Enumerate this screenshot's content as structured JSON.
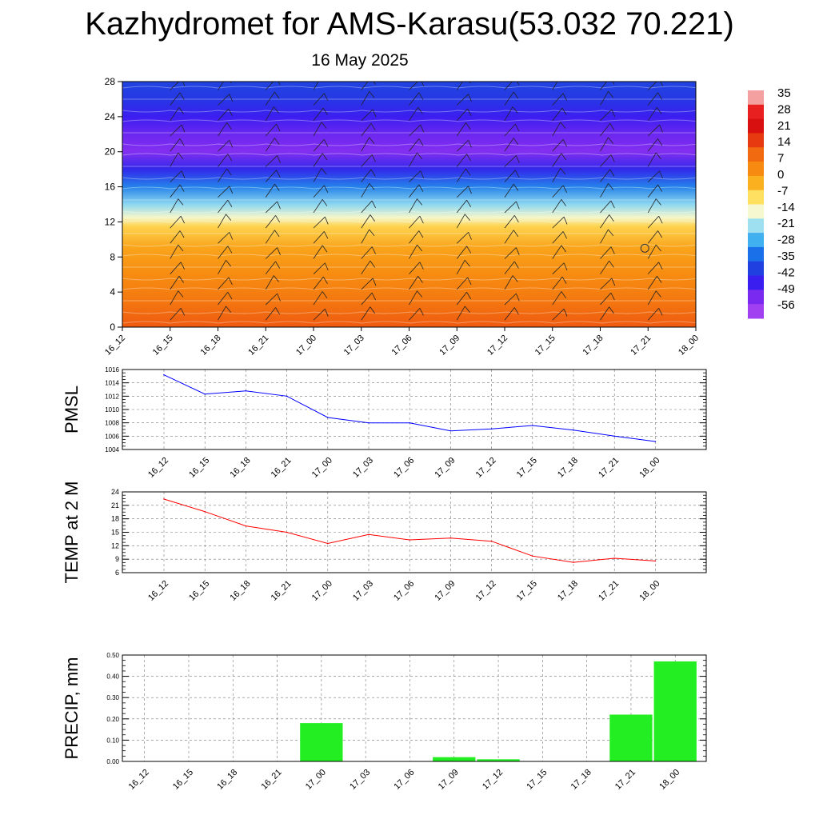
{
  "title": "Kazhydromet for AMS-Karasu(53.032 70.221)",
  "subtitle": "16 May 2025",
  "chart_data": [
    {
      "type": "heatmap",
      "name": "time-height temperature cross-section with wind barbs",
      "x_ticks": [
        "16_12",
        "16_15",
        "16_18",
        "16_21",
        "17_00",
        "17_03",
        "17_06",
        "17_09",
        "17_12",
        "17_15",
        "17_18",
        "17_21",
        "18_00"
      ],
      "y_ticks": [
        "0",
        "4",
        "8",
        "12",
        "16",
        "20",
        "24",
        "28"
      ],
      "ylim": [
        0,
        28
      ],
      "colorbar": {
        "labels": [
          "35",
          "28",
          "21",
          "14",
          "7",
          "0",
          "-7",
          "-14",
          "-21",
          "-28",
          "-35",
          "-42",
          "-49",
          "-56"
        ],
        "colors": [
          "#f4a0a0",
          "#e82020",
          "#d81010",
          "#e83a10",
          "#f26a10",
          "#f78a10",
          "#fbb020",
          "#ffe060",
          "#f6f8d0",
          "#9ee0f0",
          "#40b0f0",
          "#1a70e8",
          "#2040e0",
          "#3a1ef0",
          "#7a2af0",
          "#a040f0"
        ]
      },
      "profile_temp_by_height": [
        [
          0,
          14
        ],
        [
          3,
          9
        ],
        [
          6,
          5
        ],
        [
          9,
          1
        ],
        [
          11.5,
          -6
        ],
        [
          12.5,
          -14
        ],
        [
          14,
          -22
        ],
        [
          16,
          -32
        ],
        [
          18,
          -45
        ],
        [
          20,
          -55
        ],
        [
          22,
          -52
        ],
        [
          24,
          -47
        ],
        [
          26,
          -42
        ],
        [
          28,
          -40
        ]
      ]
    },
    {
      "type": "line",
      "ylabel": "PMSL",
      "categories": [
        "16_12",
        "16_15",
        "16_18",
        "16_21",
        "17_00",
        "17_03",
        "17_06",
        "17_09",
        "17_12",
        "17_15",
        "17_18",
        "17_21",
        "18_00"
      ],
      "y_ticks": [
        "1004",
        "1006",
        "1008",
        "1010",
        "1012",
        "1014",
        "1016"
      ],
      "ylim": [
        1004,
        1016
      ],
      "color": "#0000ff",
      "values": [
        1015.2,
        1012.3,
        1012.8,
        1012.0,
        1008.8,
        1008.0,
        1008.0,
        1006.8,
        1007.1,
        1007.6,
        1006.9,
        1006.0,
        1005.2
      ]
    },
    {
      "type": "line",
      "ylabel": "TEMP at 2 M",
      "categories": [
        "16_12",
        "16_15",
        "16_18",
        "16_21",
        "17_00",
        "17_03",
        "17_06",
        "17_09",
        "17_12",
        "17_15",
        "17_18",
        "17_21",
        "18_00"
      ],
      "y_ticks": [
        "6",
        "9",
        "12",
        "15",
        "18",
        "21",
        "24"
      ],
      "ylim": [
        6,
        24
      ],
      "color": "#ff0000",
      "values": [
        22.4,
        19.6,
        16.4,
        15.0,
        12.5,
        14.5,
        13.3,
        13.7,
        13.0,
        9.7,
        8.3,
        9.2,
        8.6
      ]
    },
    {
      "type": "bar",
      "ylabel": "PRECIP, mm",
      "categories": [
        "16_12",
        "16_15",
        "16_18",
        "16_21",
        "17_00",
        "17_03",
        "17_06",
        "17_09",
        "17_12",
        "17_15",
        "17_18",
        "17_21",
        "18_00"
      ],
      "y_ticks": [
        "0.00",
        "0.10",
        "0.20",
        "0.30",
        "0.40",
        "0.50"
      ],
      "ylim": [
        0,
        0.5
      ],
      "color": "#22ee22",
      "values": [
        0,
        0,
        0,
        0,
        0.18,
        0,
        0,
        0.02,
        0.01,
        0,
        0,
        0.22,
        0.47
      ]
    }
  ]
}
